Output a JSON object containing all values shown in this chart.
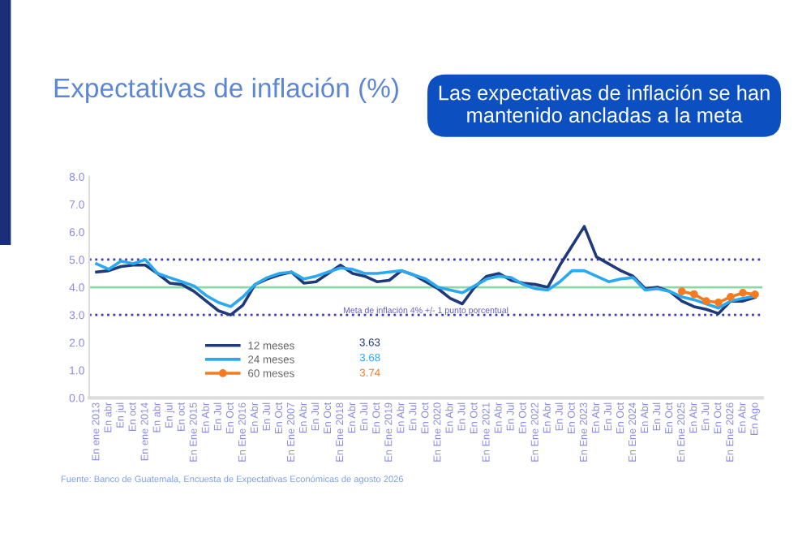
{
  "chart_data": {
    "type": "line",
    "title": "Expectativas de inflación (%)",
    "subtitle": "Las expectativas de inflación se han mantenido ancladas a la meta",
    "categories": [
      "En ene 2013",
      "En abr",
      "En jul",
      "En oct",
      "En ene 2014",
      "En abr",
      "En jul",
      "En oct",
      "En Ene 2015",
      "En Abr",
      "En Jul",
      "En Oct",
      "En Ene 2016",
      "En Abr",
      "En Jul",
      "En Oct",
      "En Ene 2007",
      "En Abr",
      "En Jul",
      "En Oct",
      "En Ene 2018",
      "En Abr",
      "En Jul",
      "En Oct",
      "En Ene 2019",
      "En Abr",
      "En Jul",
      "En Oct",
      "En Ene 2020",
      "En Abr",
      "En Jul",
      "En Oct",
      "En Ene 2021",
      "En Abr",
      "En Jul",
      "En Oct",
      "En Ene 2022",
      "En Abr",
      "En Jul",
      "En Oct",
      "En Ene 2023",
      "En Abr",
      "En Jul",
      "En Oct",
      "En Ene 2024",
      "En Abr",
      "En Jul",
      "En Oct",
      "En Ene 2025",
      "En Abr",
      "En Jul",
      "En Oct",
      "En Ene 2026",
      "En Abr",
      "En Ago"
    ],
    "series": [
      {
        "name": "12 meses",
        "color": "#1f3a7a",
        "values": [
          4.55,
          4.6,
          4.75,
          4.8,
          4.8,
          4.5,
          4.15,
          4.1,
          3.85,
          3.5,
          3.15,
          3.0,
          3.35,
          4.1,
          4.3,
          4.45,
          4.55,
          4.15,
          4.2,
          4.5,
          4.8,
          4.5,
          4.4,
          4.2,
          4.25,
          4.6,
          4.45,
          4.2,
          3.95,
          3.6,
          3.4,
          4.0,
          4.4,
          4.5,
          4.25,
          4.15,
          4.1,
          4.0,
          4.8,
          5.5,
          6.2,
          5.1,
          4.85,
          4.6,
          4.4,
          3.95,
          4.0,
          3.85,
          3.5,
          3.3,
          3.2,
          3.05,
          3.5,
          3.5,
          3.63
        ]
      },
      {
        "name": "24 meses",
        "color": "#2aa8f0",
        "values": [
          4.85,
          4.65,
          4.95,
          4.85,
          5.0,
          4.5,
          4.35,
          4.2,
          4.05,
          3.7,
          3.45,
          3.3,
          3.65,
          4.1,
          4.35,
          4.5,
          4.55,
          4.3,
          4.4,
          4.55,
          4.7,
          4.65,
          4.5,
          4.5,
          4.55,
          4.6,
          4.45,
          4.3,
          4.0,
          3.9,
          3.8,
          4.05,
          4.3,
          4.4,
          4.35,
          4.1,
          3.95,
          3.9,
          4.2,
          4.6,
          4.6,
          4.4,
          4.2,
          4.3,
          4.35,
          3.9,
          3.95,
          3.85,
          3.65,
          3.55,
          3.4,
          3.25,
          3.5,
          3.6,
          3.68
        ]
      },
      {
        "name": "60 meses",
        "color": "#f47b20",
        "marker": "circle",
        "values": [
          null,
          null,
          null,
          null,
          null,
          null,
          null,
          null,
          null,
          null,
          null,
          null,
          null,
          null,
          null,
          null,
          null,
          null,
          null,
          null,
          null,
          null,
          null,
          null,
          null,
          null,
          null,
          null,
          null,
          null,
          null,
          null,
          null,
          null,
          null,
          null,
          null,
          null,
          null,
          null,
          null,
          null,
          null,
          null,
          null,
          null,
          null,
          null,
          3.85,
          3.75,
          3.5,
          3.45,
          3.65,
          3.8,
          3.74
        ]
      }
    ],
    "ylim": [
      0,
      8
    ],
    "yticks": [
      {
        "value": 0,
        "label": "0.0"
      },
      {
        "value": 1,
        "label": "1.0"
      },
      {
        "value": 2,
        "label": "2.0"
      },
      {
        "value": 3,
        "label": "3.0"
      },
      {
        "value": 4,
        "label": "4.0"
      },
      {
        "value": 5,
        "label": "5.0"
      },
      {
        "value": 6,
        "label": "6.0"
      },
      {
        "value": 7,
        "label": "7.0"
      },
      {
        "value": 8,
        "label": "8.0"
      }
    ],
    "ref_lines": [
      {
        "axis": "y",
        "value": 5,
        "color": "#3b3bb8",
        "line_style": "dotted"
      },
      {
        "axis": "y",
        "value": 4,
        "color": "#8fd6a8",
        "line_style": "solid"
      },
      {
        "axis": "y",
        "value": 3,
        "color": "#3b3bb8",
        "line_style": "dotted",
        "label": "Meta de inflación 4% +/- 1 punto porcentual"
      }
    ],
    "annotations": [
      "3.63",
      "3.68",
      "3.74",
      "Fuente: Banco de Guatemala, Encuesta de Expectativas Económicas de agosto 2026"
    ],
    "grid": false,
    "legend": "bottom left",
    "line_style": "solid"
  }
}
